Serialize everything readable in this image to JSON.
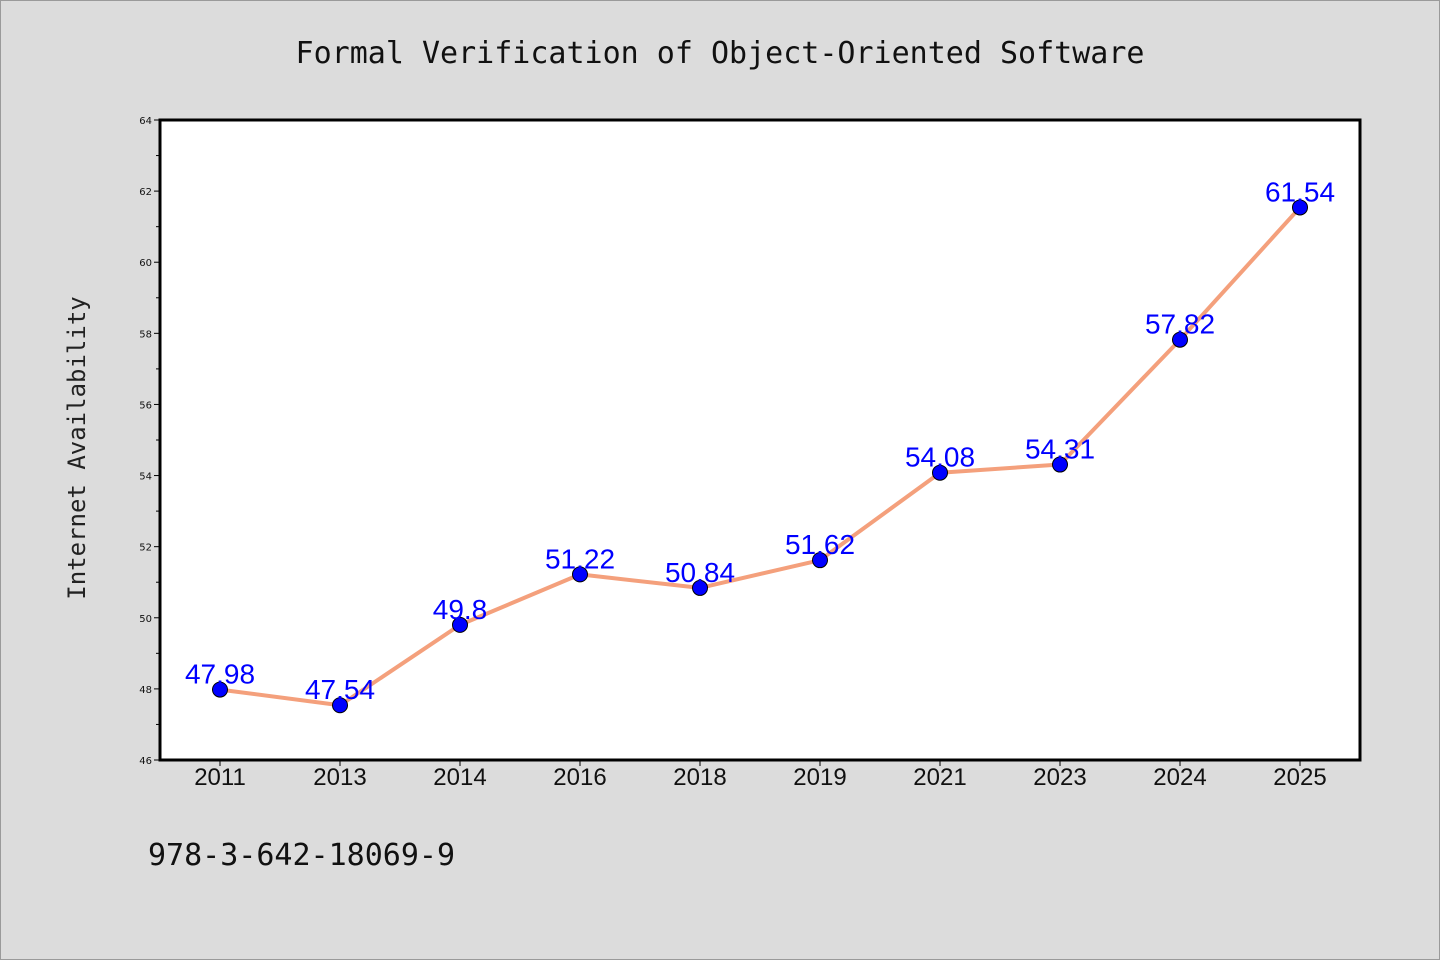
{
  "chart_data": {
    "type": "line",
    "title": "Formal Verification of Object-Oriented Software",
    "xlabel": "",
    "ylabel": "Internet Availability",
    "categories": [
      "2011",
      "2013",
      "2014",
      "2016",
      "2018",
      "2019",
      "2021",
      "2023",
      "2024",
      "2025"
    ],
    "series": [
      {
        "values": [
          47.98,
          47.54,
          49.8,
          51.22,
          50.84,
          51.62,
          54.08,
          54.31,
          57.82,
          61.54
        ]
      }
    ],
    "ylim": [
      46,
      64
    ],
    "yticks": [
      46,
      48,
      50,
      52,
      54,
      56,
      58,
      60,
      62,
      64
    ],
    "grid": false,
    "legend": "none",
    "line_color": "#f4a07c",
    "marker_color": "#0000ff",
    "label_color": "#0000ff",
    "data_labels": [
      "47.98",
      "47.54",
      "49.8",
      "51.22",
      "50.84",
      "51.62",
      "54.08",
      "54.31",
      "57.82",
      "61.54"
    ]
  },
  "footnote": "978-3-642-18069-9"
}
